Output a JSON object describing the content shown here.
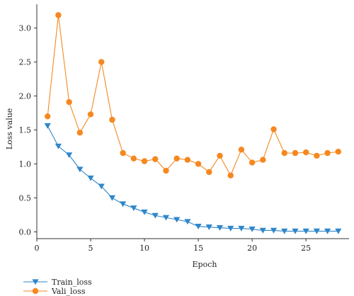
{
  "chart_data": {
    "type": "line",
    "xlabel": "Epoch",
    "ylabel": "Loss value",
    "xlim": [
      0,
      29
    ],
    "ylim": [
      -0.1,
      3.35
    ],
    "xticks": [
      "0",
      "5",
      "10",
      "15",
      "20",
      "25"
    ],
    "yticks": [
      "0.0",
      "0.5",
      "1.0",
      "1.5",
      "2.0",
      "2.5",
      "3.0"
    ],
    "grid": false,
    "legend_position": "bottom-left",
    "x": [
      1,
      2,
      3,
      4,
      5,
      6,
      7,
      8,
      9,
      10,
      11,
      12,
      13,
      14,
      15,
      16,
      17,
      18,
      19,
      20,
      21,
      22,
      23,
      24,
      25,
      26,
      27,
      28
    ],
    "series": [
      {
        "name": "Train_loss",
        "marker": "triangle-down",
        "color": "#2f86c9",
        "values": [
          1.56,
          1.26,
          1.13,
          0.92,
          0.79,
          0.67,
          0.5,
          0.41,
          0.35,
          0.29,
          0.24,
          0.21,
          0.18,
          0.15,
          0.08,
          0.07,
          0.06,
          0.05,
          0.05,
          0.04,
          0.02,
          0.02,
          0.01,
          0.01,
          0.01,
          0.01,
          0.01,
          0.01
        ]
      },
      {
        "name": "Vali_loss",
        "marker": "circle",
        "color": "#f5881f",
        "values": [
          1.7,
          3.19,
          1.91,
          1.46,
          1.73,
          2.5,
          1.65,
          1.16,
          1.08,
          1.04,
          1.07,
          0.9,
          1.08,
          1.06,
          1.0,
          0.88,
          1.12,
          0.83,
          1.21,
          1.02,
          1.06,
          1.51,
          1.16,
          1.16,
          1.17,
          1.12,
          1.16,
          1.18
        ]
      }
    ]
  }
}
